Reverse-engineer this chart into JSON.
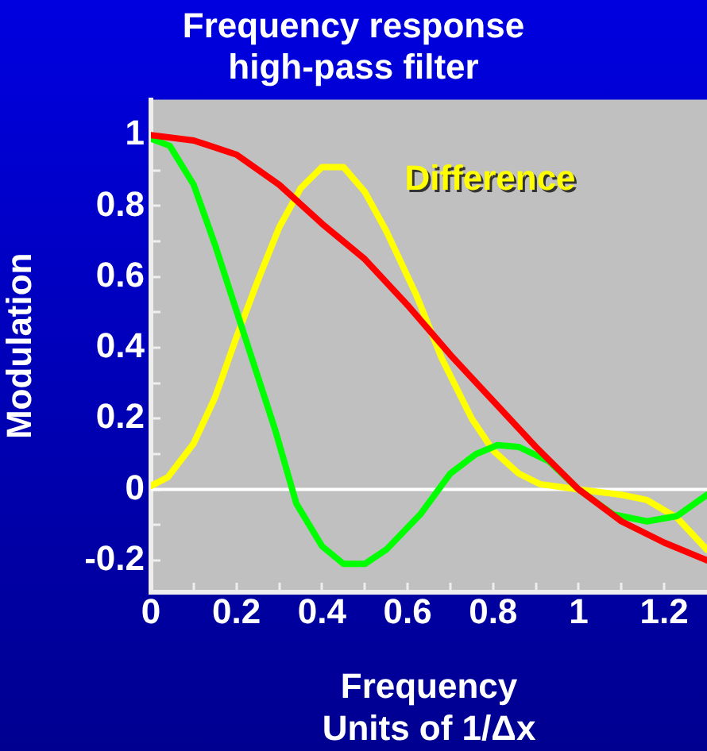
{
  "chart_data": {
    "type": "line",
    "title": "Frequency response\nhigh-pass filter",
    "xlabel": "Frequency\nUnits of 1/Δx",
    "ylabel": "Modulation",
    "xlim": [
      0,
      1.3
    ],
    "xticks": [
      0,
      {
        "value": 0.1,
        "label": null
      },
      0.2,
      {
        "value": 0.3,
        "label": null
      },
      0.4,
      {
        "value": 0.5,
        "label": null
      },
      0.6,
      {
        "value": 0.7,
        "label": null
      },
      0.8,
      {
        "value": 0.9,
        "label": null
      },
      1,
      {
        "value": 1.1,
        "label": null
      },
      1.2
    ],
    "ylim": [
      -0.29,
      1.1
    ],
    "yticks": [
      -0.2,
      {
        "value": -0.1,
        "label": null
      },
      0,
      {
        "value": 0.1,
        "label": null
      },
      0.2,
      {
        "value": 0.3,
        "label": null
      },
      0.4,
      {
        "value": 0.5,
        "label": null
      },
      0.6,
      {
        "value": 0.7,
        "label": null
      },
      0.8,
      {
        "value": 0.9,
        "label": null
      },
      1
    ],
    "grid": false,
    "legend": false,
    "marker": "none",
    "line_style": "solid",
    "ref_lines": [
      {
        "axis": "y",
        "value": 0,
        "color": "#ffffff"
      }
    ],
    "series": [
      {
        "color": "#ff0000",
        "x": [
          0,
          0.1,
          0.2,
          0.3,
          0.4,
          0.5,
          0.6,
          0.7,
          0.8,
          0.9,
          1,
          1.1,
          1.2,
          1.3
        ],
        "values": [
          1,
          0.985,
          0.945,
          0.86,
          0.75,
          0.65,
          0.52,
          0.38,
          0.25,
          0.12,
          0,
          -0.09,
          -0.15,
          -0.2
        ]
      },
      {
        "color": "#00ff00",
        "x": [
          0,
          0.044,
          0.1,
          0.15,
          0.22,
          0.29,
          0.34,
          0.4,
          0.45,
          0.5,
          0.55,
          0.63,
          0.7,
          0.76,
          0.81,
          0.86,
          0.93,
          1,
          1.08,
          1.16,
          1.23,
          1.3
        ],
        "values": [
          0.99,
          0.97,
          0.86,
          0.69,
          0.43,
          0.17,
          -0.04,
          -0.16,
          -0.21,
          -0.21,
          -0.17,
          -0.07,
          0.045,
          0.1,
          0.125,
          0.12,
          0.08,
          0,
          -0.07,
          -0.09,
          -0.075,
          -0.015
        ]
      },
      {
        "name": "Difference",
        "color": "#ffff00",
        "x": [
          0,
          0.04,
          0.1,
          0.15,
          0.2,
          0.25,
          0.3,
          0.35,
          0.4,
          0.45,
          0.5,
          0.55,
          0.62,
          0.68,
          0.75,
          0.8,
          0.86,
          0.91,
          1,
          1.1,
          1.16,
          1.23,
          1.3
        ],
        "values": [
          0.01,
          0.035,
          0.13,
          0.26,
          0.43,
          0.59,
          0.74,
          0.85,
          0.91,
          0.91,
          0.84,
          0.73,
          0.55,
          0.37,
          0.2,
          0.11,
          0.045,
          0.015,
          0,
          -0.015,
          -0.03,
          -0.08,
          -0.17
        ]
      }
    ]
  }
}
